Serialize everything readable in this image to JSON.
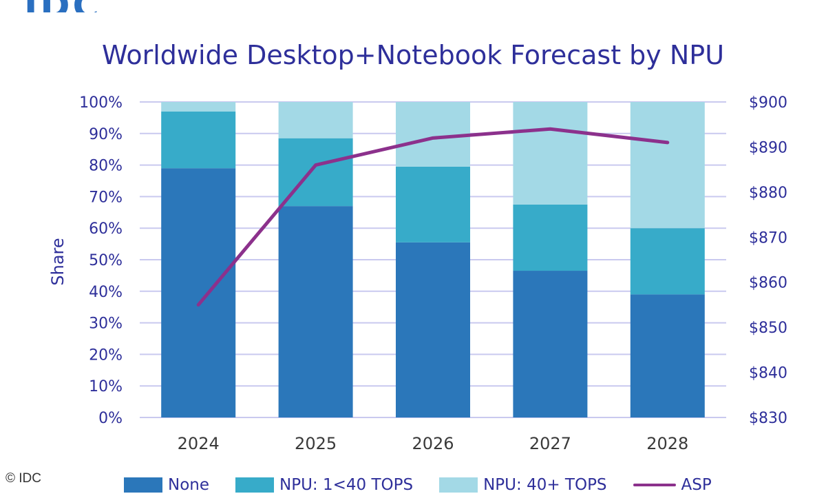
{
  "logo": "IDC",
  "copyright": "© IDC",
  "chart_data": {
    "type": "bar",
    "stacked": true,
    "title": "Worldwide Desktop+Notebook Forecast by NPU",
    "ylabel": "Share",
    "categories": [
      "2024",
      "2025",
      "2026",
      "2027",
      "2028"
    ],
    "series": [
      {
        "name": "None",
        "values": [
          79,
          67,
          55.5,
          46.5,
          39
        ],
        "color": "#2b77ba"
      },
      {
        "name": "NPU: 1<40 TOPS",
        "values": [
          18,
          21.5,
          24,
          21,
          21
        ],
        "color": "#37abc9"
      },
      {
        "name": "NPU: 40+ TOPS",
        "values": [
          3,
          11.5,
          20.5,
          32.5,
          40
        ],
        "color": "#a3d9e6"
      }
    ],
    "line_series": {
      "name": "ASP",
      "values": [
        855,
        886,
        892,
        894,
        891
      ],
      "color": "#8c318c",
      "axis": "right"
    },
    "ylim": [
      0,
      100
    ],
    "y_ticks": [
      "0%",
      "10%",
      "20%",
      "30%",
      "40%",
      "50%",
      "60%",
      "70%",
      "80%",
      "90%",
      "100%"
    ],
    "y2lim": [
      830,
      900
    ],
    "y2_ticks": [
      "$830",
      "$840",
      "$850",
      "$860",
      "$870",
      "$880",
      "$890",
      "$900"
    ],
    "grid": true,
    "legend": "bottom"
  }
}
